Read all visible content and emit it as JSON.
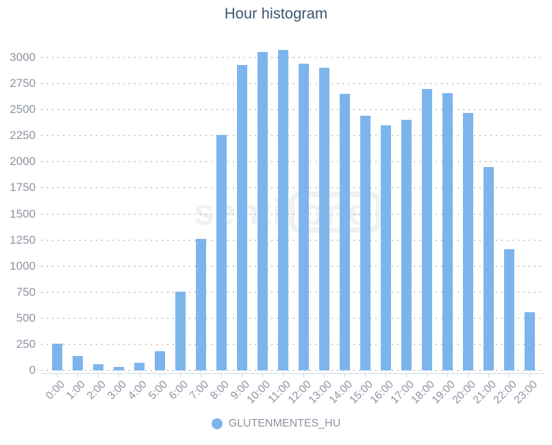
{
  "title": "Hour histogram",
  "watermark": {
    "text_left": "senti",
    "text_boxed": "one"
  },
  "legend": {
    "label": "GLUTENMENTES_HU",
    "marker_color": "#7cb5ec"
  },
  "colors": {
    "bar": "#7cb5ec",
    "title": "#3e576f",
    "axis_labels": "#8d93a2",
    "gridline": "#c9c9c9",
    "axis_line": "#ccd6eb",
    "watermark": "#f1f1f4",
    "background": "#ffffff"
  },
  "chart_data": {
    "type": "bar",
    "title": "Hour histogram",
    "categories": [
      "0:00",
      "1:00",
      "2:00",
      "3:00",
      "4:00",
      "5:00",
      "6:00",
      "7:00",
      "8:00",
      "9:00",
      "10:00",
      "11:00",
      "12:00",
      "13:00",
      "14:00",
      "15:00",
      "16:00",
      "17:00",
      "18:00",
      "19:00",
      "20:00",
      "21:00",
      "22:00",
      "23:00"
    ],
    "series": [
      {
        "name": "GLUTENMENTES_HU",
        "color": "#7cb5ec",
        "values": [
          255,
          135,
          60,
          35,
          70,
          185,
          755,
          1260,
          2260,
          2930,
          3055,
          3075,
          2940,
          2900,
          2650,
          2445,
          2350,
          2405,
          2700,
          2660,
          2470,
          1950,
          1165,
          555
        ]
      }
    ],
    "xlabel": "",
    "ylabel": "",
    "ylim": [
      0,
      3250
    ],
    "ytick_step": 250,
    "ytick_labels": [
      "0",
      "250",
      "500",
      "750",
      "1000",
      "1250",
      "1500",
      "1750",
      "2000",
      "2250",
      "2500",
      "2750",
      "3000"
    ],
    "grid": "horizontal-dotted",
    "x_label_rotation": -45,
    "legend_position": "bottom-center"
  }
}
